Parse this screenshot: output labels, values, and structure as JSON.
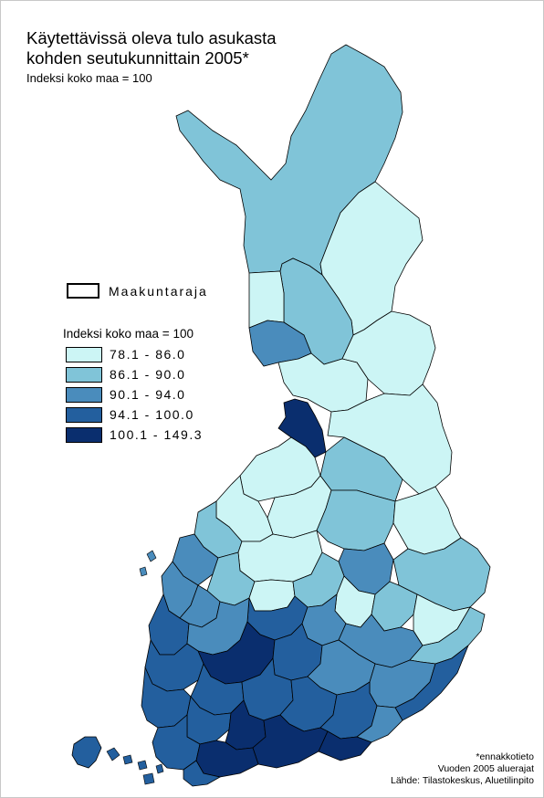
{
  "title_lines": [
    "Käytettävissä oleva tulo asukasta",
    "kohden seutukunnittain 2005*"
  ],
  "subtitle": "Indeksi koko maa = 100",
  "legend": {
    "boundary_label": "Maakuntaraja",
    "title": "Indeksi koko maa = 100",
    "classes": [
      {
        "label": "78.1 - 86.0",
        "color": "#ccf5f5"
      },
      {
        "label": "86.1 - 90.0",
        "color": "#80c4d8"
      },
      {
        "label": "90.1 - 94.0",
        "color": "#4a8cbc"
      },
      {
        "label": "94.1 - 100.0",
        "color": "#235f9e"
      },
      {
        "label": "100.1 - 149.3",
        "color": "#0a2e6e"
      }
    ]
  },
  "footnotes": [
    "*ennakkotieto",
    "Vuoden 2005 aluerajat",
    "Lähde: Tilastokeskus, Aluetilinpito"
  ],
  "colors": {
    "class_1": "#ccf5f5",
    "class_2": "#80c4d8",
    "class_3": "#4a8cbc",
    "class_4": "#235f9e",
    "class_5": "#0a2e6e",
    "border": "#000000"
  }
}
